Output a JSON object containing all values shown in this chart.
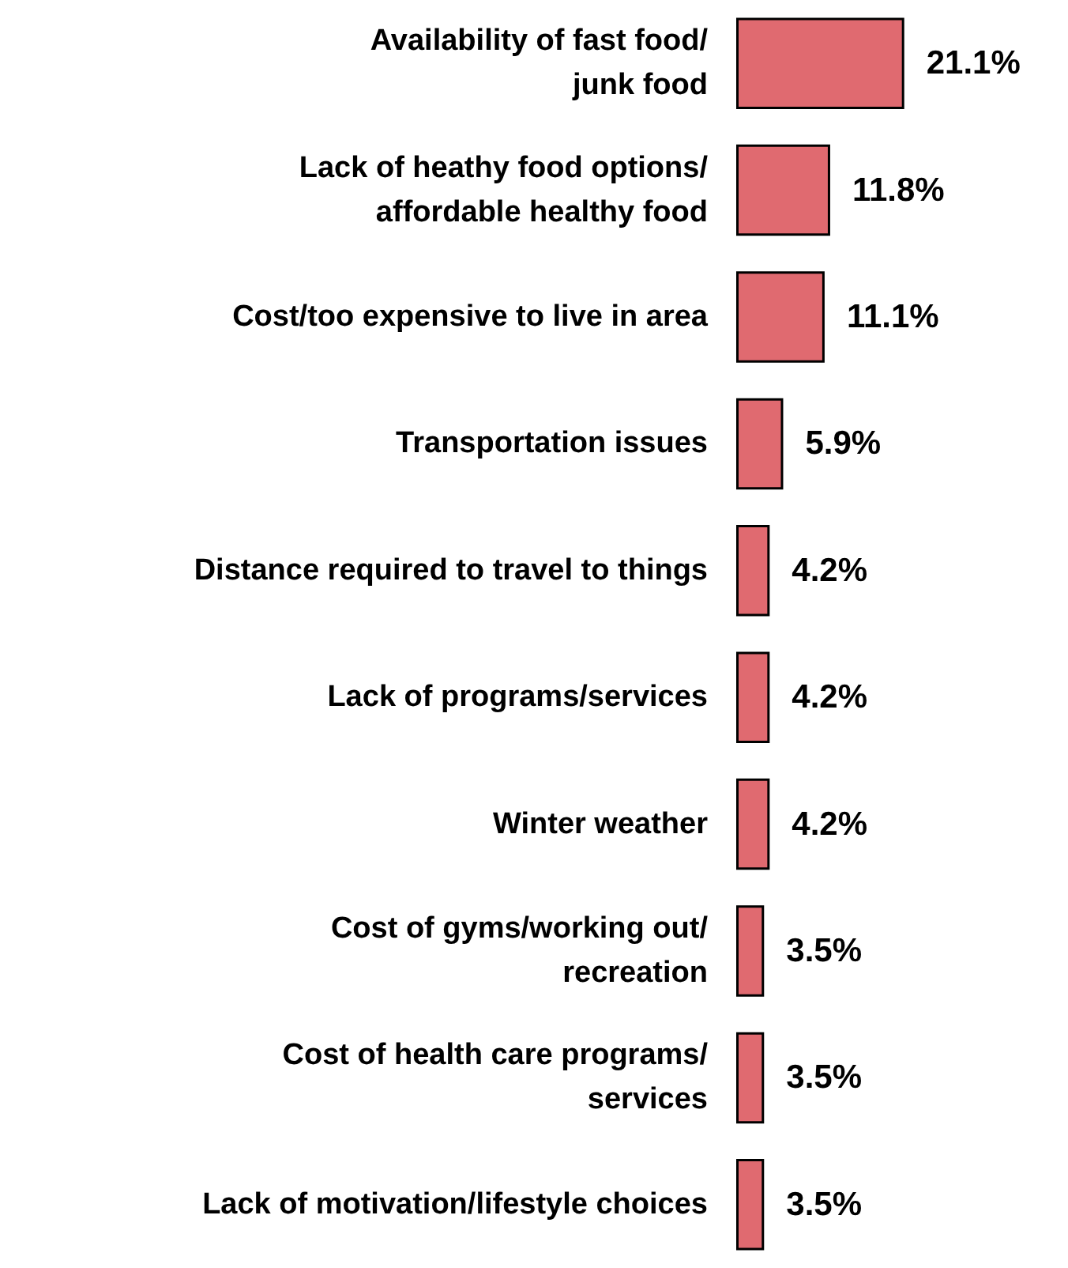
{
  "chart_data": {
    "type": "bar",
    "orientation": "horizontal",
    "categories": [
      "Availability of fast food/ junk food",
      "Lack of heathy food options/ affordable healthy food",
      "Cost/too expensive to live in area",
      "Transportation issues",
      "Distance required to travel to things",
      "Lack of programs/services",
      "Winter weather",
      "Cost of gyms/working out/ recreation",
      "Cost of health care programs/ services",
      "Lack of motivation/lifestyle choices"
    ],
    "values": [
      21.1,
      11.8,
      11.1,
      5.9,
      4.2,
      4.2,
      4.2,
      3.5,
      3.5,
      3.5
    ],
    "value_labels": [
      "21.1%",
      "11.8%",
      "11.1%",
      "5.9%",
      "4.2%",
      "4.2%",
      "4.2%",
      "3.5%",
      "3.5%",
      "3.5%"
    ],
    "color": "#e06a70",
    "tick_labels": "y"
  }
}
